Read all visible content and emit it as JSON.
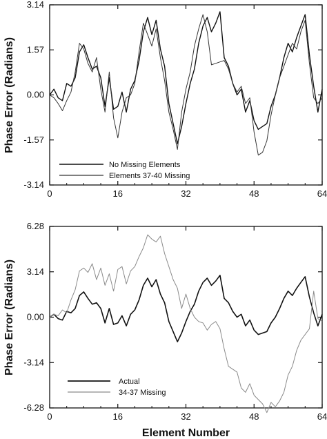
{
  "chart_data": [
    {
      "type": "line",
      "title": "",
      "xlabel": "",
      "ylabel": "Phase Error (Radians)",
      "xlim": [
        0,
        64
      ],
      "ylim": [
        -3.14,
        3.14
      ],
      "xticks": [
        0,
        16,
        32,
        48,
        64
      ],
      "yticks": [
        3.14,
        1.57,
        0.0,
        -1.57,
        -3.14
      ],
      "xtick_labels": [
        "0",
        "16",
        "32",
        "48",
        "64"
      ],
      "ytick_labels": [
        "3.14",
        "1.57",
        "0.00",
        "-1.57",
        "-3.14"
      ],
      "grid": false,
      "legend_position": "bottom-left",
      "x": [
        0,
        1,
        2,
        3,
        4,
        5,
        6,
        7,
        8,
        9,
        10,
        11,
        12,
        13,
        14,
        15,
        16,
        17,
        18,
        19,
        20,
        21,
        22,
        23,
        24,
        25,
        26,
        27,
        28,
        29,
        30,
        31,
        32,
        33,
        34,
        35,
        36,
        37,
        38,
        39,
        40,
        41,
        42,
        43,
        44,
        45,
        46,
        47,
        48,
        49,
        50,
        51,
        52,
        53,
        54,
        55,
        56,
        57,
        58,
        59,
        60,
        61,
        62,
        63,
        64
      ],
      "series": [
        {
          "name": "No Missing Elements",
          "color": "#111111",
          "stroke_width": 1.4,
          "values": [
            0.0,
            0.2,
            -0.1,
            -0.2,
            0.4,
            0.3,
            0.6,
            1.5,
            1.75,
            1.3,
            0.9,
            1.0,
            0.6,
            -0.4,
            0.6,
            -0.5,
            -0.4,
            0.1,
            -0.6,
            0.2,
            0.5,
            1.2,
            2.2,
            2.7,
            2.1,
            2.6,
            1.6,
            1.0,
            -0.3,
            -1.0,
            -1.7,
            -1.1,
            -0.3,
            0.4,
            0.9,
            1.8,
            2.4,
            2.7,
            2.2,
            2.5,
            2.9,
            1.3,
            1.0,
            0.4,
            0.0,
            0.2,
            -0.6,
            -0.2,
            -0.9,
            -1.2,
            -1.1,
            -1.0,
            -0.4,
            0.0,
            0.6,
            1.3,
            1.8,
            1.5,
            2.0,
            2.4,
            2.8,
            1.4,
            0.3,
            -0.6,
            0.2
          ]
        },
        {
          "name": "Elements 37-40 Missing",
          "color": "#333333",
          "stroke_width": 1.0,
          "values": [
            0.0,
            -0.1,
            -0.3,
            -0.55,
            -0.2,
            0.1,
            0.8,
            1.8,
            1.6,
            1.1,
            0.8,
            1.3,
            0.2,
            -0.6,
            0.8,
            -0.8,
            -1.5,
            -0.6,
            -0.1,
            0.0,
            0.4,
            1.5,
            2.5,
            2.1,
            1.7,
            2.3,
            1.3,
            0.5,
            -0.6,
            -1.2,
            -1.9,
            -0.6,
            0.2,
            0.8,
            1.7,
            2.3,
            2.8,
            2.2,
            1.05,
            1.1,
            1.15,
            1.2,
            0.9,
            0.4,
            0.1,
            0.3,
            -0.3,
            -0.1,
            -1.3,
            -2.1,
            -2.0,
            -1.6,
            -0.7,
            0.0,
            0.6,
            1.0,
            1.4,
            1.8,
            1.6,
            2.2,
            2.6,
            1.1,
            -0.1,
            -0.3,
            -0.1
          ]
        }
      ]
    },
    {
      "type": "line",
      "title": "",
      "xlabel": "Element Number",
      "ylabel": "Phase Error (Radians)",
      "xlim": [
        0,
        64
      ],
      "ylim": [
        -6.28,
        6.28
      ],
      "xticks": [
        0,
        16,
        32,
        48,
        64
      ],
      "yticks": [
        6.28,
        3.14,
        0.0,
        -3.14,
        -6.28
      ],
      "xtick_labels": [
        "0",
        "16",
        "32",
        "48",
        "64"
      ],
      "ytick_labels": [
        "6.28",
        "3.14",
        "0.00",
        "-3.14",
        "-6.28"
      ],
      "grid": false,
      "legend_position": "bottom-left",
      "x": [
        0,
        1,
        2,
        3,
        4,
        5,
        6,
        7,
        8,
        9,
        10,
        11,
        12,
        13,
        14,
        15,
        16,
        17,
        18,
        19,
        20,
        21,
        22,
        23,
        24,
        25,
        26,
        27,
        28,
        29,
        30,
        31,
        32,
        33,
        34,
        35,
        36,
        37,
        38,
        39,
        40,
        41,
        42,
        43,
        44,
        45,
        46,
        47,
        48,
        49,
        50,
        51,
        52,
        53,
        54,
        55,
        56,
        57,
        58,
        59,
        60,
        61,
        62,
        63,
        64
      ],
      "series": [
        {
          "name": "Actual",
          "color": "#111111",
          "stroke_width": 1.6,
          "values": [
            0.0,
            0.2,
            -0.1,
            -0.2,
            0.4,
            0.3,
            0.6,
            1.5,
            1.75,
            1.3,
            0.9,
            1.0,
            0.6,
            -0.4,
            0.6,
            -0.5,
            -0.4,
            0.1,
            -0.6,
            0.2,
            0.5,
            1.2,
            2.2,
            2.7,
            2.1,
            2.6,
            1.6,
            1.0,
            -0.3,
            -1.0,
            -1.7,
            -1.1,
            -0.3,
            0.4,
            0.9,
            1.8,
            2.4,
            2.7,
            2.2,
            2.5,
            2.9,
            1.3,
            1.0,
            0.4,
            0.0,
            0.2,
            -0.6,
            -0.2,
            -0.9,
            -1.2,
            -1.1,
            -1.0,
            -0.4,
            0.0,
            0.6,
            1.3,
            1.8,
            1.5,
            2.0,
            2.4,
            2.8,
            1.4,
            0.3,
            -0.6,
            0.2
          ]
        },
        {
          "name": "34-37 Missing",
          "color": "#8a8a8a",
          "stroke_width": 1.0,
          "values": [
            0.0,
            0.2,
            0.1,
            0.5,
            0.3,
            1.2,
            1.9,
            3.2,
            3.4,
            3.1,
            3.7,
            2.6,
            3.4,
            2.2,
            3.0,
            1.8,
            3.3,
            3.5,
            2.3,
            3.2,
            3.5,
            4.2,
            4.8,
            5.7,
            5.4,
            5.2,
            5.6,
            4.4,
            3.5,
            2.6,
            2.0,
            0.6,
            1.6,
            0.6,
            0.0,
            -0.3,
            -0.4,
            -0.9,
            -0.5,
            -0.3,
            -0.8,
            -2.2,
            -3.4,
            -3.6,
            -3.8,
            -4.9,
            -5.2,
            -4.6,
            -5.4,
            -5.7,
            -6.0,
            -6.6,
            -5.9,
            -6.2,
            -5.8,
            -5.2,
            -4.0,
            -3.4,
            -2.3,
            -1.6,
            -1.2,
            -0.8,
            1.8,
            -0.1,
            -0.3
          ]
        }
      ]
    }
  ]
}
